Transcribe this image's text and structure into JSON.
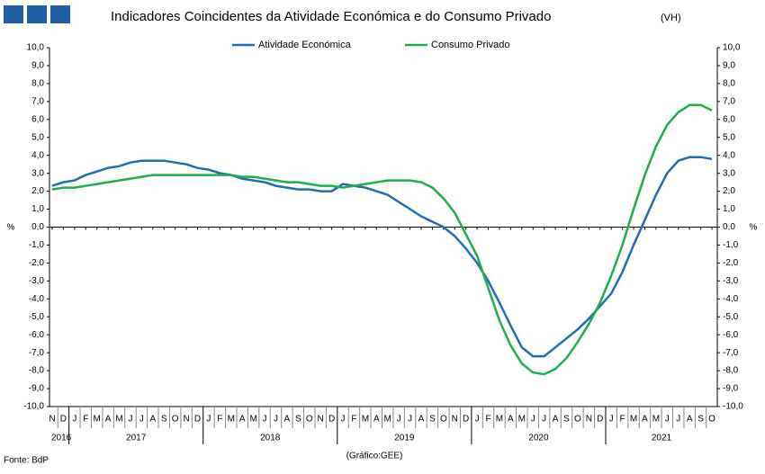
{
  "chart_data": {
    "type": "line",
    "title": "Indicadores Coincidentes da Atividade Económica e do Consumo Privado",
    "subtitle": "(VH)",
    "source": "Fonte: BdP",
    "credit": "(Gráfico:GEE)",
    "y_label": "%",
    "y2_label": "%",
    "categories": [
      "N",
      "D",
      "J",
      "F",
      "M",
      "A",
      "M",
      "J",
      "J",
      "A",
      "S",
      "O",
      "N",
      "D",
      "J",
      "F",
      "M",
      "A",
      "M",
      "J",
      "J",
      "A",
      "S",
      "O",
      "N",
      "D",
      "J",
      "F",
      "M",
      "A",
      "M",
      "J",
      "J",
      "A",
      "S",
      "O",
      "N",
      "D",
      "J",
      "F",
      "M",
      "A",
      "M",
      "J",
      "J",
      "A",
      "S",
      "O",
      "N",
      "D",
      "J",
      "F",
      "M",
      "A",
      "M",
      "J",
      "J",
      "A",
      "S",
      "O"
    ],
    "years": [
      "2016",
      "2017",
      "2018",
      "2019",
      "2020",
      "2021"
    ],
    "series": [
      {
        "name": "Atividade Económica",
        "color": "#1f6eb4",
        "values": [
          2.3,
          2.5,
          2.6,
          2.9,
          3.1,
          3.3,
          3.4,
          3.6,
          3.7,
          3.7,
          3.7,
          3.6,
          3.5,
          3.3,
          3.2,
          3.0,
          2.9,
          2.7,
          2.6,
          2.5,
          2.3,
          2.2,
          2.1,
          2.1,
          2.0,
          2.0,
          2.4,
          2.3,
          2.2,
          2.0,
          1.8,
          1.4,
          1.0,
          0.6,
          0.3,
          0.0,
          -0.5,
          -1.2,
          -2.0,
          -3.0,
          -4.2,
          -5.5,
          -6.7,
          -7.2,
          -7.2,
          -6.7,
          -6.2,
          -5.7,
          -5.1,
          -4.4,
          -3.7,
          -2.5,
          -1.0,
          0.4,
          1.8,
          3.0,
          3.7,
          3.9,
          3.9,
          3.8
        ]
      },
      {
        "name": "Consumo Privado",
        "color": "#1fae4c",
        "values": [
          2.1,
          2.2,
          2.2,
          2.3,
          2.4,
          2.5,
          2.6,
          2.7,
          2.8,
          2.9,
          2.9,
          2.9,
          2.9,
          2.9,
          2.9,
          2.9,
          2.9,
          2.8,
          2.8,
          2.7,
          2.6,
          2.5,
          2.5,
          2.4,
          2.3,
          2.3,
          2.2,
          2.3,
          2.4,
          2.5,
          2.6,
          2.6,
          2.6,
          2.5,
          2.2,
          1.6,
          0.8,
          -0.4,
          -1.6,
          -3.4,
          -5.2,
          -6.6,
          -7.6,
          -8.1,
          -8.2,
          -7.9,
          -7.3,
          -6.4,
          -5.4,
          -4.2,
          -2.7,
          -1.0,
          1.0,
          2.9,
          4.5,
          5.7,
          6.4,
          6.8,
          6.8,
          6.5
        ]
      }
    ],
    "ylim": [
      -10,
      10
    ],
    "yticks": [
      {
        "value": 10,
        "label": "10,0"
      },
      {
        "value": 9,
        "label": "9,0"
      },
      {
        "value": 8,
        "label": "8,0"
      },
      {
        "value": 7,
        "label": "7,0"
      },
      {
        "value": 6,
        "label": "6,0"
      },
      {
        "value": 5,
        "label": "5,0"
      },
      {
        "value": 4,
        "label": "4,0"
      },
      {
        "value": 3,
        "label": "3,0"
      },
      {
        "value": 2,
        "label": "2,0"
      },
      {
        "value": 1,
        "label": "1,0"
      },
      {
        "value": 0,
        "label": "0,0"
      },
      {
        "value": -1,
        "label": "-1,0"
      },
      {
        "value": -2,
        "label": "-2,0"
      },
      {
        "value": -3,
        "label": "-3,0"
      },
      {
        "value": -4,
        "label": "-4,0"
      },
      {
        "value": -5,
        "label": "-5,0"
      },
      {
        "value": -6,
        "label": "-6,0"
      },
      {
        "value": -7,
        "label": "-7,0"
      },
      {
        "value": -8,
        "label": "-8,0"
      },
      {
        "value": -9,
        "label": "-9,0"
      },
      {
        "value": -10,
        "label": "-10,0"
      }
    ],
    "y2lim": [
      -10,
      10
    ],
    "y2ticks": [
      {
        "value": 10,
        "label": "10,0"
      },
      {
        "value": 9,
        "label": "9,0"
      },
      {
        "value": 8,
        "label": "8,0"
      },
      {
        "value": 7,
        "label": "7,0"
      },
      {
        "value": 6,
        "label": "6,0"
      },
      {
        "value": 5,
        "label": "5,0"
      },
      {
        "value": 4,
        "label": "4,0"
      },
      {
        "value": 3,
        "label": "3,0"
      },
      {
        "value": 2,
        "label": "2,0"
      },
      {
        "value": 1,
        "label": "1,0"
      },
      {
        "value": 0,
        "label": "0,0"
      },
      {
        "value": -1,
        "label": "-1,0"
      },
      {
        "value": -2,
        "label": "-2,0"
      },
      {
        "value": -3,
        "label": "-3,0"
      },
      {
        "value": -4,
        "label": "-4,0"
      },
      {
        "value": -5,
        "label": "-5,0"
      },
      {
        "value": -6,
        "label": "-6,0"
      },
      {
        "value": -7,
        "label": "-7,0"
      },
      {
        "value": -8,
        "label": "-8,0"
      },
      {
        "value": -9,
        "label": "-9,0"
      },
      {
        "value": -10,
        "label": "-10,0"
      }
    ],
    "grid": false,
    "legend": "top"
  }
}
